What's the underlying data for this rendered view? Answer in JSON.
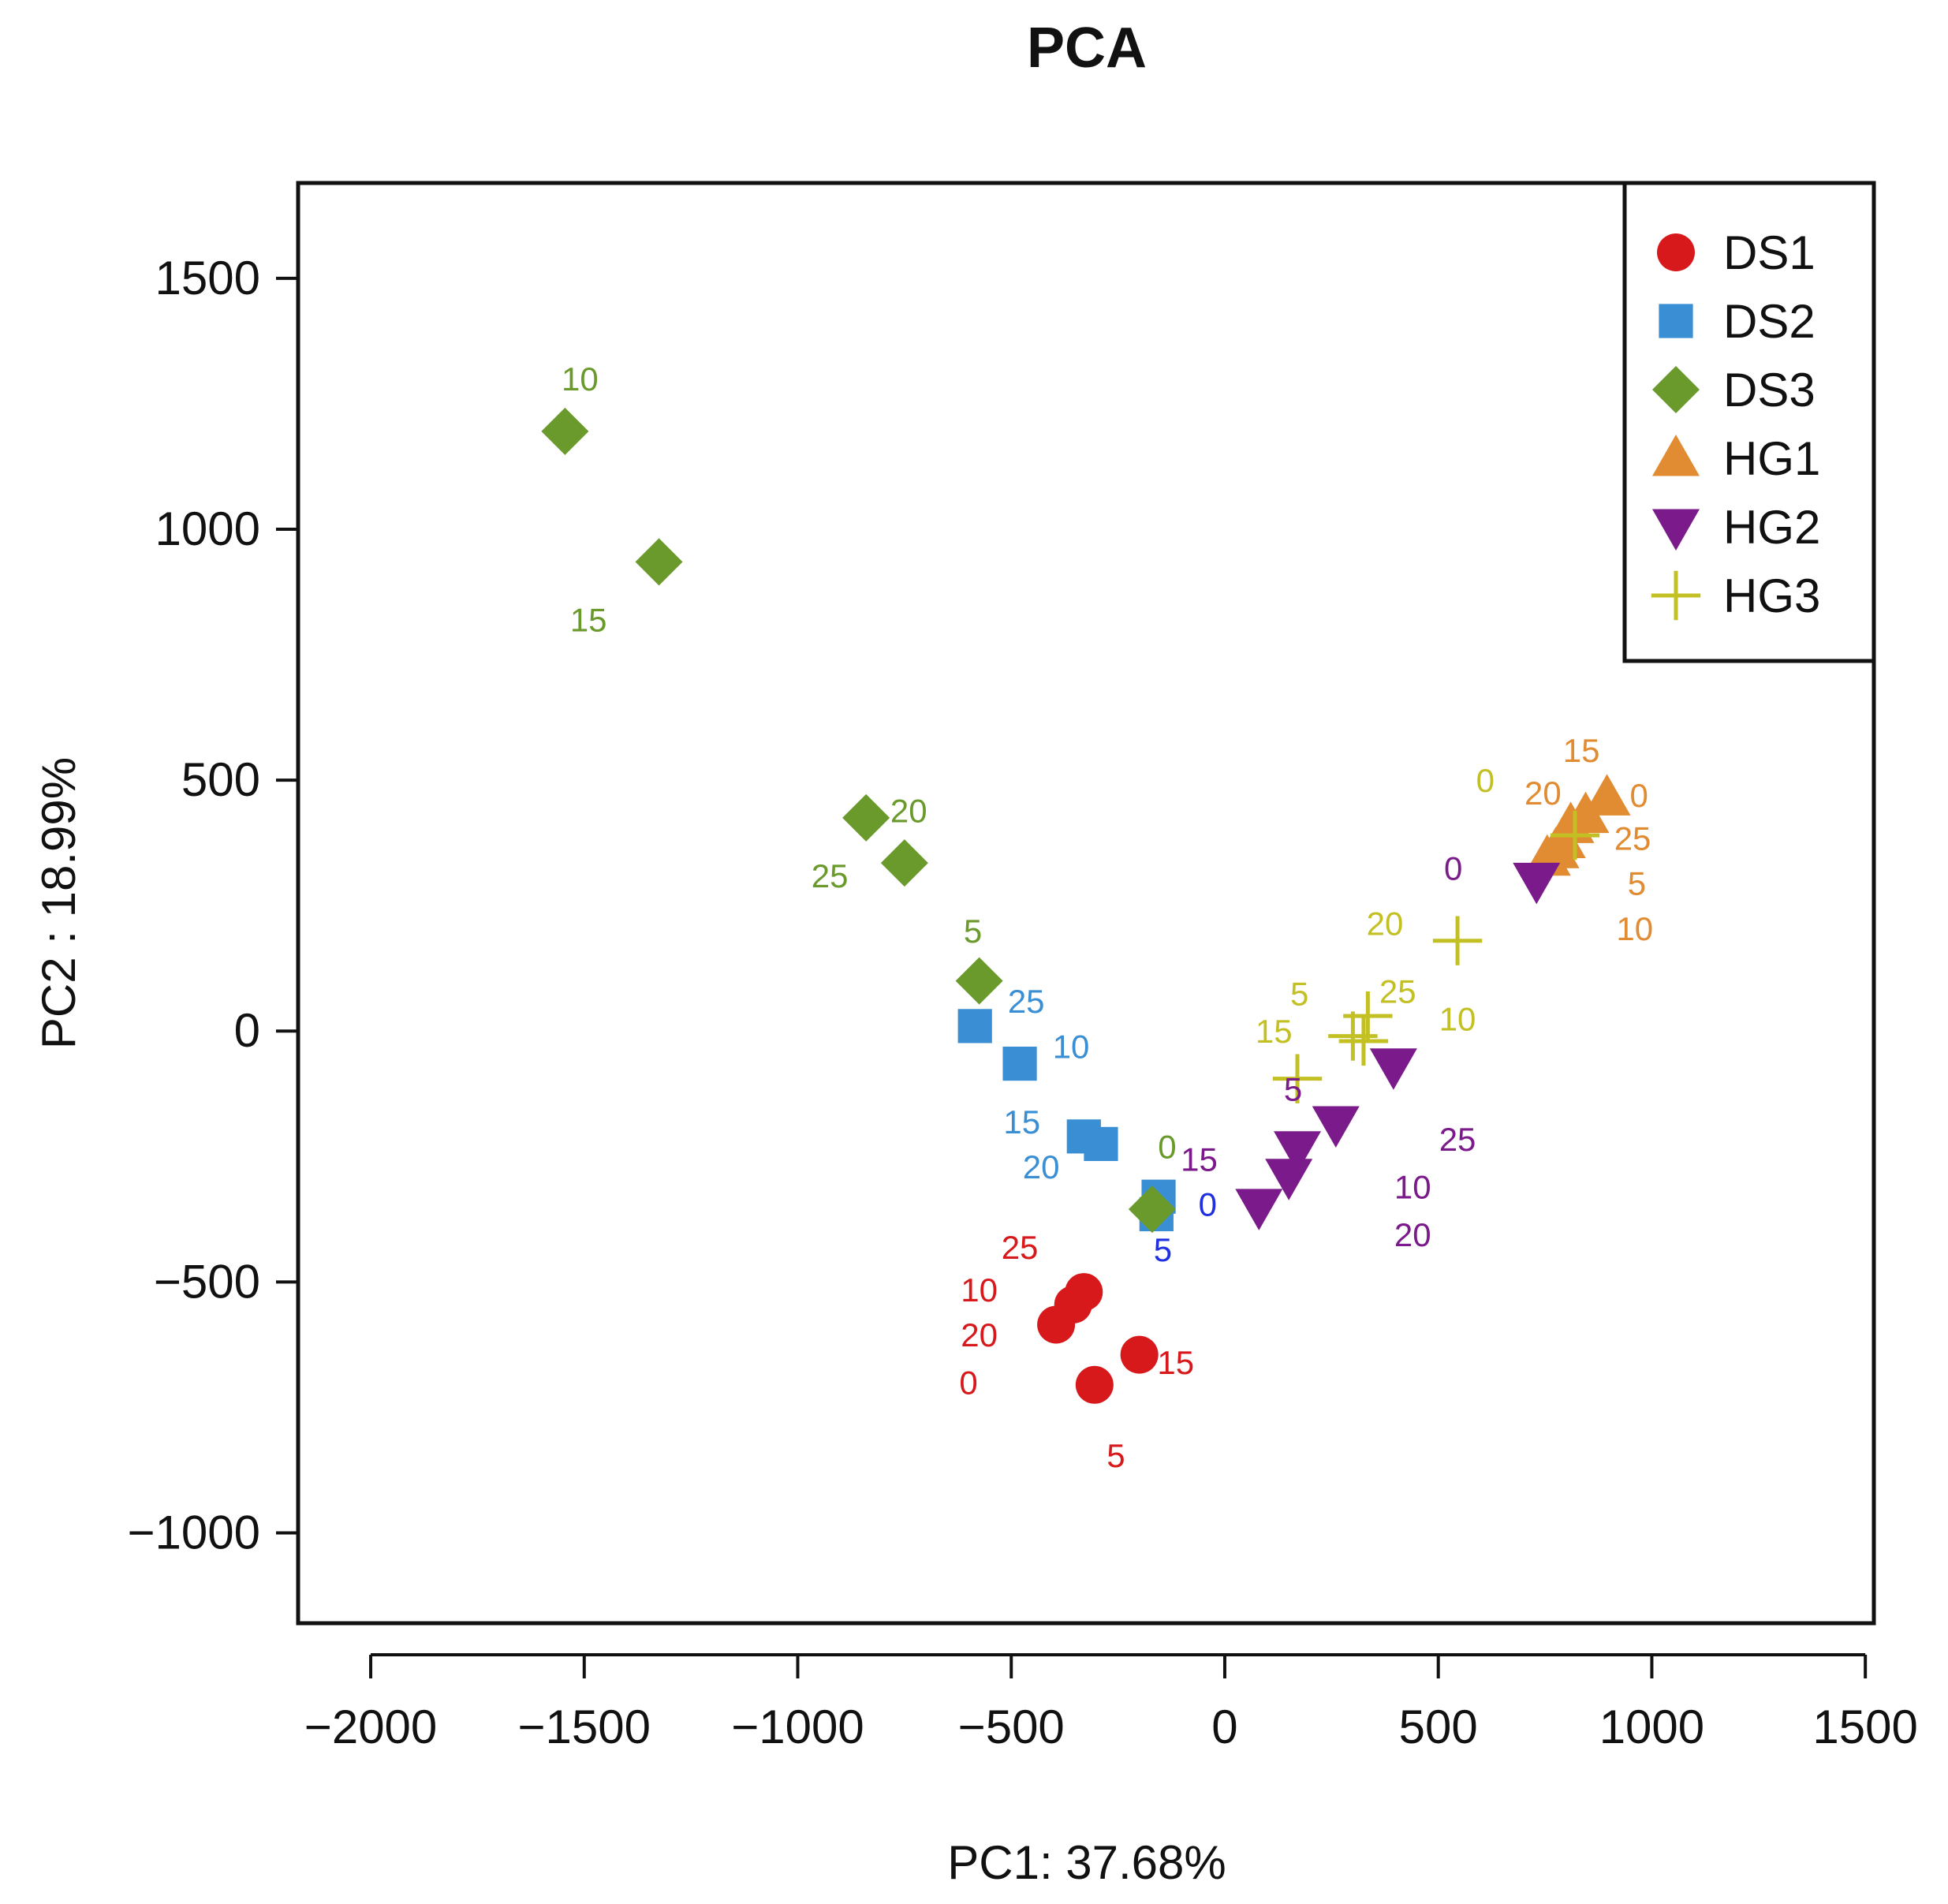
{
  "chart_data": {
    "type": "scatter",
    "title": "PCA",
    "xlabel": "PC1: 37.68%",
    "ylabel": "PC2 : 18.99%",
    "xlim": [
      -2170,
      1520
    ],
    "ylim": [
      -1180,
      1690
    ],
    "xticks": [
      -2000,
      -1500,
      -1000,
      -500,
      0,
      500,
      1000,
      1500
    ],
    "yticks": [
      -1000,
      -500,
      0,
      500,
      1000,
      1500
    ],
    "xtick_labels": [
      "−2000",
      "−1500",
      "−1000",
      "−500",
      "0",
      "500",
      "1000",
      "1500"
    ],
    "ytick_labels": [
      "−1000",
      "−500",
      "0",
      "500",
      "1000",
      "1500"
    ],
    "grid": false,
    "legend_position": "top-right",
    "series": [
      {
        "name": "DS1",
        "marker": "circle",
        "color": "#d7191c",
        "points": [
          {
            "x": -395,
            "y": -585
          },
          {
            "x": -355,
            "y": -545
          },
          {
            "x": -330,
            "y": -520
          },
          {
            "x": -200,
            "y": -645
          },
          {
            "x": -305,
            "y": -705
          }
        ],
        "labels": [
          {
            "text": "25",
            "x": -480,
            "y": -430
          },
          {
            "text": "10",
            "x": -575,
            "y": -515
          },
          {
            "text": "20",
            "x": -575,
            "y": -605
          },
          {
            "text": "0",
            "x": -600,
            "y": -700
          },
          {
            "text": "15",
            "x": -115,
            "y": -660
          },
          {
            "text": "5",
            "x": -255,
            "y": -845
          }
        ]
      },
      {
        "name": "DS2",
        "marker": "square",
        "color": "#3a8fd4",
        "points": [
          {
            "x": -585,
            "y": 10
          },
          {
            "x": -480,
            "y": -65
          },
          {
            "x": -330,
            "y": -210
          },
          {
            "x": -290,
            "y": -225
          },
          {
            "x": -155,
            "y": -330
          },
          {
            "x": -160,
            "y": -365
          }
        ],
        "labels": [
          {
            "text": "25",
            "x": -465,
            "y": 60
          },
          {
            "text": "10",
            "x": -360,
            "y": -30
          },
          {
            "text": "15",
            "x": -475,
            "y": -180
          },
          {
            "text": "20",
            "x": -430,
            "y": -270
          }
        ]
      },
      {
        "name": "DS3",
        "marker": "diamond",
        "color": "#6b9a2c",
        "points": [
          {
            "x": -1545,
            "y": 1195
          },
          {
            "x": -1325,
            "y": 935
          },
          {
            "x": -840,
            "y": 425
          },
          {
            "x": -750,
            "y": 335
          },
          {
            "x": -575,
            "y": 100
          },
          {
            "x": -170,
            "y": -355
          }
        ],
        "labels": [
          {
            "text": "10",
            "x": -1510,
            "y": 1300
          },
          {
            "text": "15",
            "x": -1490,
            "y": 820
          },
          {
            "text": "20",
            "x": -740,
            "y": 440
          },
          {
            "text": "25",
            "x": -925,
            "y": 310
          },
          {
            "text": "5",
            "x": -590,
            "y": 200
          },
          {
            "text": "0",
            "x": -135,
            "y": -230
          }
        ]
      },
      {
        "name": "HG1",
        "marker": "triangle-up",
        "color": "#e18b32",
        "points": [
          {
            "x": 755,
            "y": 345
          },
          {
            "x": 790,
            "y": 380
          },
          {
            "x": 810,
            "y": 410
          },
          {
            "x": 845,
            "y": 430
          },
          {
            "x": 895,
            "y": 465
          },
          {
            "x": 775,
            "y": 360
          }
        ],
        "labels": [
          {
            "text": "15",
            "x": 835,
            "y": 560
          },
          {
            "text": "20",
            "x": 745,
            "y": 475
          },
          {
            "text": "0",
            "x": 970,
            "y": 470
          },
          {
            "text": "25",
            "x": 955,
            "y": 385
          },
          {
            "text": "5",
            "x": 965,
            "y": 295
          },
          {
            "text": "10",
            "x": 960,
            "y": 205
          }
        ]
      },
      {
        "name": "HG2",
        "marker": "triangle-down",
        "color": "#7b1a8a",
        "points": [
          {
            "x": 730,
            "y": 300
          },
          {
            "x": 395,
            "y": -70
          },
          {
            "x": 260,
            "y": -185
          },
          {
            "x": 170,
            "y": -235
          },
          {
            "x": 150,
            "y": -290
          },
          {
            "x": 80,
            "y": -350
          }
        ],
        "labels": [
          {
            "text": "0",
            "x": 535,
            "y": 325
          },
          {
            "text": "25",
            "x": 545,
            "y": -215
          },
          {
            "text": "10",
            "x": 440,
            "y": -310
          },
          {
            "text": "20",
            "x": 440,
            "y": -405
          },
          {
            "text": "15",
            "x": -60,
            "y": -255
          },
          {
            "text": "5",
            "x": 160,
            "y": -115
          }
        ]
      },
      {
        "name": "HG3",
        "marker": "plus",
        "color": "#c3c024",
        "points": [
          {
            "x": 545,
            "y": 180
          },
          {
            "x": 335,
            "y": 30
          },
          {
            "x": 300,
            "y": -10
          },
          {
            "x": 170,
            "y": -95
          },
          {
            "x": 820,
            "y": 390
          },
          {
            "x": 325,
            "y": -20
          }
        ],
        "labels": [
          {
            "text": "0",
            "x": 610,
            "y": 500
          },
          {
            "text": "20",
            "x": 375,
            "y": 215
          },
          {
            "text": "25",
            "x": 405,
            "y": 80
          },
          {
            "text": "10",
            "x": 545,
            "y": 25
          },
          {
            "text": "5",
            "x": 175,
            "y": 75
          },
          {
            "text": "15",
            "x": 115,
            "y": 0
          }
        ]
      }
    ],
    "extra_labels": [
      {
        "text": "0",
        "x": -40,
        "y": -345,
        "color": "#2030e0"
      },
      {
        "text": "5",
        "x": -145,
        "y": -435,
        "color": "#2030e0"
      }
    ]
  }
}
